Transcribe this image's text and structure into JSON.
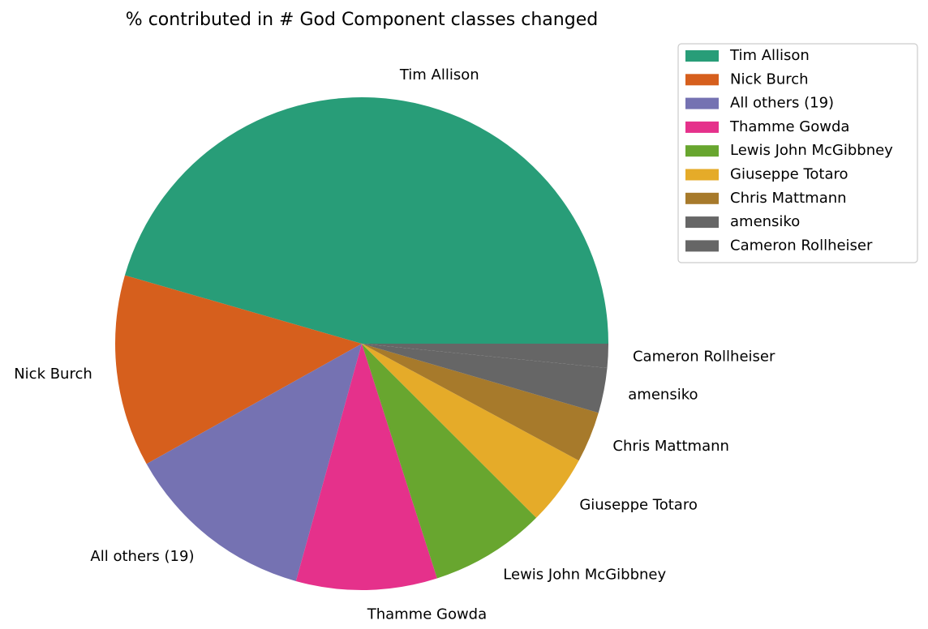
{
  "chart_data": {
    "type": "pie",
    "title": "% contributed in # God Component classes changed",
    "categories": [
      "Tim Allison",
      "Nick Burch",
      "All others (19)",
      "Thamme Gowda",
      "Lewis John McGibbney",
      "Giuseppe Totaro",
      "Chris Mattmann",
      "amensiko",
      "Cameron Rollheiser"
    ],
    "values": [
      46.3,
      12.8,
      12.8,
      9.4,
      7.7,
      4.7,
      3.4,
      3.0,
      1.6
    ],
    "colors": [
      "#289d78",
      "#d65f1d",
      "#7572b2",
      "#e5318b",
      "#68a62f",
      "#e5ab29",
      "#a77a2b",
      "#666666",
      "#666666"
    ],
    "legend_position": "top-right",
    "start_angle_degrees": 0,
    "direction": "counterclockwise"
  }
}
